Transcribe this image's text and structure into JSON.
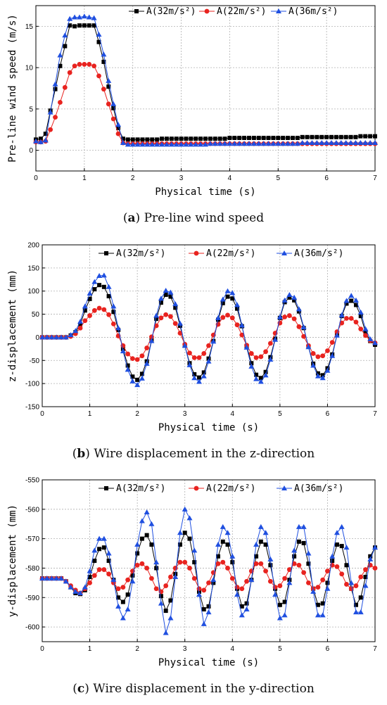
{
  "panels": [
    {
      "caption": {
        "letter": "a",
        "text": "Pre-line wind speed"
      },
      "chart_data": {
        "type": "line",
        "xlabel": "Physical time  (s)",
        "ylabel": "Pre-line wind speed  (m/s)",
        "xlim": [
          0,
          7
        ],
        "ylim": [
          -2.5,
          17.5
        ],
        "xticks": [
          0,
          1,
          2,
          3,
          4,
          5,
          6,
          7
        ],
        "yticks": [
          0,
          5,
          10,
          15
        ],
        "grid": true,
        "legend": "top-right",
        "x": [
          0.0,
          0.1,
          0.2,
          0.3,
          0.4,
          0.5,
          0.6,
          0.7,
          0.8,
          0.9,
          1.0,
          1.1,
          1.2,
          1.3,
          1.4,
          1.5,
          1.6,
          1.7,
          1.8,
          1.9,
          2.0,
          2.1,
          2.2,
          2.3,
          2.4,
          2.5,
          2.6,
          2.7,
          2.8,
          2.9,
          3.0,
          3.1,
          3.2,
          3.3,
          3.4,
          3.5,
          3.6,
          3.7,
          3.8,
          3.9,
          4.0,
          4.1,
          4.2,
          4.3,
          4.4,
          4.5,
          4.6,
          4.7,
          4.8,
          4.9,
          5.0,
          5.1,
          5.2,
          5.3,
          5.4,
          5.5,
          5.6,
          5.7,
          5.8,
          5.9,
          6.0,
          6.1,
          6.2,
          6.3,
          6.4,
          6.5,
          6.6,
          6.7,
          6.8,
          6.9,
          7.0
        ],
        "series": [
          {
            "name": "A(32m/s²)",
            "marker": "square",
            "color": "#000000",
            "values": [
              1.3,
              1.4,
              2.0,
              4.8,
              7.4,
              10.2,
              12.6,
              15.1,
              15.0,
              15.1,
              15.1,
              15.1,
              15.1,
              13.1,
              10.7,
              7.7,
              5.1,
              2.7,
              1.4,
              1.3,
              1.3,
              1.3,
              1.3,
              1.3,
              1.3,
              1.3,
              1.4,
              1.4,
              1.4,
              1.4,
              1.4,
              1.4,
              1.4,
              1.4,
              1.4,
              1.4,
              1.4,
              1.4,
              1.4,
              1.4,
              1.5,
              1.5,
              1.5,
              1.5,
              1.5,
              1.5,
              1.5,
              1.5,
              1.5,
              1.5,
              1.5,
              1.5,
              1.5,
              1.5,
              1.5,
              1.6,
              1.6,
              1.6,
              1.6,
              1.6,
              1.6,
              1.6,
              1.6,
              1.6,
              1.6,
              1.6,
              1.6,
              1.7,
              1.7,
              1.7,
              1.7
            ]
          },
          {
            "name": "A(22m/s²)",
            "marker": "circle",
            "color": "#e8231f",
            "values": [
              1.0,
              1.0,
              1.1,
              2.5,
              4.0,
              5.8,
              7.6,
              9.4,
              10.2,
              10.4,
              10.4,
              10.4,
              10.2,
              9.0,
              7.4,
              5.6,
              3.8,
              2.0,
              0.9,
              0.8,
              0.8,
              0.8,
              0.8,
              0.8,
              0.8,
              0.8,
              0.8,
              0.8,
              0.8,
              0.8,
              0.8,
              0.8,
              0.8,
              0.8,
              0.8,
              0.8,
              0.8,
              0.8,
              0.8,
              0.8,
              0.8,
              0.8,
              0.8,
              0.8,
              0.8,
              0.8,
              0.8,
              0.8,
              0.8,
              0.8,
              0.8,
              0.8,
              0.8,
              0.8,
              0.8,
              0.8,
              0.8,
              0.8,
              0.8,
              0.8,
              0.8,
              0.8,
              0.8,
              0.8,
              0.8,
              0.8,
              0.8,
              0.8,
              0.8,
              0.8,
              0.8
            ]
          },
          {
            "name": "A(36m/s²)",
            "marker": "triangle",
            "color": "#1f4fe0",
            "values": [
              1.1,
              1.0,
              1.2,
              4.6,
              8.0,
              11.5,
              13.9,
              15.9,
              16.1,
              16.1,
              16.2,
              16.1,
              16.0,
              14.0,
              11.6,
              8.4,
              5.6,
              3.1,
              0.9,
              0.7,
              0.7,
              0.7,
              0.7,
              0.7,
              0.7,
              0.7,
              0.7,
              0.7,
              0.7,
              0.7,
              0.7,
              0.7,
              0.7,
              0.7,
              0.7,
              0.7,
              0.8,
              0.8,
              0.8,
              0.8,
              0.8,
              0.8,
              0.8,
              0.8,
              0.8,
              0.8,
              0.8,
              0.8,
              0.8,
              0.8,
              0.8,
              0.8,
              0.8,
              0.8,
              0.8,
              0.9,
              0.9,
              0.9,
              0.9,
              0.9,
              0.9,
              0.9,
              0.9,
              0.9,
              0.9,
              0.9,
              0.9,
              0.9,
              0.9,
              0.9,
              0.9
            ]
          }
        ]
      }
    },
    {
      "caption": {
        "letter": "b",
        "text": "Wire displacement in the z-direction"
      },
      "chart_data": {
        "type": "line",
        "xlabel": "Physical time  (s)",
        "ylabel": "z-displacement  (mm)",
        "xlim": [
          0,
          7
        ],
        "ylim": [
          -150,
          200
        ],
        "xticks": [
          0,
          1,
          2,
          3,
          4,
          5,
          6,
          7
        ],
        "yticks": [
          -150,
          -100,
          -50,
          0,
          50,
          100,
          150,
          200
        ],
        "grid": true,
        "legend": "top",
        "x": [
          0.0,
          0.1,
          0.2,
          0.3,
          0.4,
          0.5,
          0.6,
          0.7,
          0.8,
          0.9,
          1.0,
          1.1,
          1.2,
          1.3,
          1.4,
          1.5,
          1.6,
          1.7,
          1.8,
          1.9,
          2.0,
          2.1,
          2.2,
          2.3,
          2.4,
          2.5,
          2.6,
          2.7,
          2.8,
          2.9,
          3.0,
          3.1,
          3.2,
          3.3,
          3.4,
          3.5,
          3.6,
          3.7,
          3.8,
          3.9,
          4.0,
          4.1,
          4.2,
          4.3,
          4.4,
          4.5,
          4.6,
          4.7,
          4.8,
          4.9,
          5.0,
          5.1,
          5.2,
          5.3,
          5.4,
          5.5,
          5.6,
          5.7,
          5.8,
          5.9,
          6.0,
          6.1,
          6.2,
          6.3,
          6.4,
          6.5,
          6.6,
          6.7,
          6.8,
          6.9,
          7.0
        ],
        "series": [
          {
            "name": "A(32m/s²)",
            "marker": "square",
            "color": "#000000",
            "values": [
              0,
              0,
              0,
              0,
              0,
              0,
              4,
              11,
              28,
              58,
              83,
              104,
              113,
              109,
              89,
              55,
              16,
              -25,
              -61,
              -85,
              -92,
              -79,
              -52,
              -6,
              40,
              75,
              92,
              88,
              64,
              25,
              -18,
              -56,
              -80,
              -87,
              -76,
              -46,
              -8,
              38,
              74,
              88,
              84,
              62,
              24,
              -19,
              -56,
              -81,
              -88,
              -75,
              -43,
              -3,
              42,
              76,
              86,
              80,
              56,
              20,
              -20,
              -57,
              -78,
              -82,
              -67,
              -37,
              5,
              46,
              73,
              79,
              70,
              46,
              11,
              -8,
              -16
            ]
          },
          {
            "name": "A(22m/s²)",
            "marker": "circle",
            "color": "#e8231f",
            "values": [
              0,
              0,
              0,
              0,
              0,
              0,
              2,
              8,
              20,
              36,
              47,
              58,
              63,
              60,
              49,
              29,
              3,
              -18,
              -36,
              -46,
              -48,
              -40,
              -23,
              1,
              25,
              42,
              49,
              45,
              30,
              9,
              -15,
              -34,
              -44,
              -44,
              -35,
              -18,
              5,
              28,
              43,
              48,
              42,
              27,
              5,
              -17,
              -35,
              -44,
              -42,
              -31,
              -13,
              9,
              31,
              44,
              47,
              40,
              23,
              2,
              -18,
              -35,
              -42,
              -40,
              -29,
              -11,
              12,
              31,
              41,
              41,
              33,
              18,
              4,
              -7,
              -12
            ]
          },
          {
            "name": "A(36m/s²)",
            "marker": "triangle",
            "color": "#1f4fe0",
            "values": [
              0,
              0,
              0,
              0,
              0,
              0,
              5,
              14,
              34,
              67,
              95,
              120,
              133,
              134,
              109,
              67,
              20,
              -30,
              -70,
              -95,
              -103,
              -89,
              -57,
              -8,
              47,
              84,
              101,
              97,
              72,
              30,
              -18,
              -60,
              -88,
              -96,
              -84,
              -52,
              -9,
              42,
              82,
              100,
              96,
              70,
              26,
              -22,
              -63,
              -90,
              -96,
              -82,
              -48,
              -5,
              44,
              80,
              92,
              86,
              61,
              22,
              -21,
              -61,
              -84,
              -88,
              -72,
              -40,
              4,
              48,
              79,
              90,
              80,
              54,
              18,
              -4,
              -12
            ]
          }
        ]
      }
    },
    {
      "caption": {
        "letter": "c",
        "text": "Wire displacement in the y-direction"
      },
      "chart_data": {
        "type": "line",
        "xlabel": "Physical time  (s)",
        "ylabel": "y-displacement  (mm)",
        "xlim": [
          0,
          7
        ],
        "ylim": [
          -605,
          -550
        ],
        "xticks": [
          0,
          1,
          2,
          3,
          4,
          5,
          6,
          7
        ],
        "yticks": [
          -600,
          -590,
          -580,
          -570,
          -560,
          -550
        ],
        "grid": true,
        "legend": "top",
        "x": [
          0.0,
          0.1,
          0.2,
          0.3,
          0.4,
          0.5,
          0.6,
          0.7,
          0.8,
          0.9,
          1.0,
          1.1,
          1.2,
          1.3,
          1.4,
          1.5,
          1.6,
          1.7,
          1.8,
          1.9,
          2.0,
          2.1,
          2.2,
          2.3,
          2.4,
          2.5,
          2.6,
          2.7,
          2.8,
          2.9,
          3.0,
          3.1,
          3.2,
          3.3,
          3.4,
          3.5,
          3.6,
          3.7,
          3.8,
          3.9,
          4.0,
          4.1,
          4.2,
          4.3,
          4.4,
          4.5,
          4.6,
          4.7,
          4.8,
          4.9,
          5.0,
          5.1,
          5.2,
          5.3,
          5.4,
          5.5,
          5.6,
          5.7,
          5.8,
          5.9,
          6.0,
          6.1,
          6.2,
          6.3,
          6.4,
          6.5,
          6.6,
          6.7,
          6.8,
          6.9,
          7.0
        ],
        "series": [
          {
            "name": "A(32m/s²)",
            "marker": "square",
            "color": "#000000",
            "values": [
              -583.5,
              -583.5,
              -583.5,
              -583.5,
              -583.5,
              -584.5,
              -586.5,
              -588.5,
              -588.8,
              -587.5,
              -583.0,
              -577.5,
              -573.5,
              -573.0,
              -577.5,
              -584.0,
              -590.0,
              -591.5,
              -589.0,
              -582.5,
              -575.0,
              -570.0,
              -568.8,
              -572.0,
              -580.0,
              -589.5,
              -594.5,
              -591.0,
              -582.0,
              -572.0,
              -568.0,
              -570.0,
              -578.0,
              -588.0,
              -594.0,
              -593.0,
              -585.0,
              -576.0,
              -571.0,
              -572.0,
              -578.0,
              -587.0,
              -593.0,
              -592.0,
              -584.0,
              -576.0,
              -571.0,
              -572.0,
              -579.0,
              -587.0,
              -592.5,
              -591.5,
              -584.0,
              -576.0,
              -571.0,
              -571.5,
              -578.5,
              -587.0,
              -592.5,
              -592.0,
              -585.0,
              -577.5,
              -572.0,
              -572.5,
              -579.0,
              -587.0,
              -592.5,
              -590.0,
              -583.0,
              -576.0,
              -573.0
            ]
          },
          {
            "name": "A(22m/s²)",
            "marker": "circle",
            "color": "#e8231f",
            "values": [
              -583.5,
              -583.5,
              -583.5,
              -583.5,
              -583.5,
              -584.5,
              -586.0,
              -587.5,
              -588.5,
              -587.0,
              -585.0,
              -582.5,
              -580.5,
              -580.5,
              -582.0,
              -585.0,
              -587.0,
              -586.5,
              -584.0,
              -581.0,
              -579.0,
              -578.5,
              -580.0,
              -583.5,
              -587.0,
              -588.0,
              -586.0,
              -583.0,
              -580.0,
              -578.0,
              -578.0,
              -580.0,
              -583.5,
              -587.0,
              -587.5,
              -585.0,
              -581.5,
              -578.5,
              -578.0,
              -580.0,
              -583.5,
              -586.5,
              -587.0,
              -584.5,
              -581.0,
              -578.5,
              -578.5,
              -581.0,
              -584.5,
              -586.5,
              -586.0,
              -583.5,
              -580.5,
              -578.5,
              -579.0,
              -581.5,
              -585.0,
              -587.0,
              -586.5,
              -584.0,
              -581.0,
              -579.0,
              -579.5,
              -582.0,
              -585.5,
              -587.0,
              -586.0,
              -583.0,
              -580.5,
              -579.0,
              -580.0
            ]
          },
          {
            "name": "A(36m/s²)",
            "marker": "triangle",
            "color": "#1f4fe0",
            "values": [
              -583.5,
              -583.5,
              -583.5,
              -583.5,
              -583.5,
              -584.5,
              -586.5,
              -588.0,
              -588.5,
              -586.5,
              -581.0,
              -574.0,
              -570.0,
              -570.0,
              -575.0,
              -584.0,
              -593.0,
              -597.0,
              -594.0,
              -584.5,
              -572.0,
              -564.0,
              -561.0,
              -565.0,
              -578.0,
              -592.0,
              -602.0,
              -597.0,
              -583.0,
              -568.0,
              -560.0,
              -563.0,
              -574.0,
              -589.0,
              -599.0,
              -595.0,
              -584.0,
              -572.0,
              -566.0,
              -568.0,
              -576.0,
              -589.0,
              -596.0,
              -594.0,
              -584.0,
              -572.0,
              -566.0,
              -568.0,
              -577.0,
              -589.0,
              -597.0,
              -596.0,
              -585.0,
              -574.0,
              -566.0,
              -566.0,
              -575.0,
              -588.0,
              -596.0,
              -596.0,
              -587.0,
              -576.0,
              -568.0,
              -566.0,
              -573.0,
              -585.0,
              -595.0,
              -595.0,
              -586.0,
              -577.0,
              -573.0
            ]
          }
        ]
      }
    }
  ]
}
